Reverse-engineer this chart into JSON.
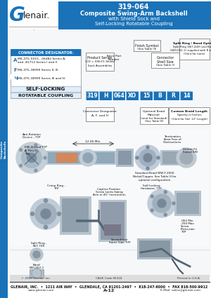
{
  "title_part": "319-064",
  "title_line1": "Composite Swing-Arm Backshell",
  "title_line2": "with Shield Sock and",
  "title_line3": "Self-Locking Rotatable Coupling",
  "blue": "#1a72b8",
  "dark_blue": "#1555a0",
  "white": "#ffffff",
  "light_gray": "#f0f0f0",
  "mid_gray": "#cccccc",
  "dark_gray": "#444444",
  "black": "#111111",
  "footer_line1": "GLENAIR, INC.  •  1211 AIR WAY  •  GLENDALE, CA 91201-2497  •  818-247-6000  •  FAX 818-500-9912",
  "footer_line2": "www.glenair.com",
  "footer_line3": "A-12",
  "footer_line4": "E-Mail: sales@glenair.com",
  "copyright": "© 2009 Glenair, Inc.",
  "cage_code": "CAGE Code 06324",
  "printed": "Printed in U.S.A.",
  "part_boxes": [
    "319",
    "H",
    "064",
    "XO",
    "15",
    "B",
    "R",
    "14"
  ]
}
